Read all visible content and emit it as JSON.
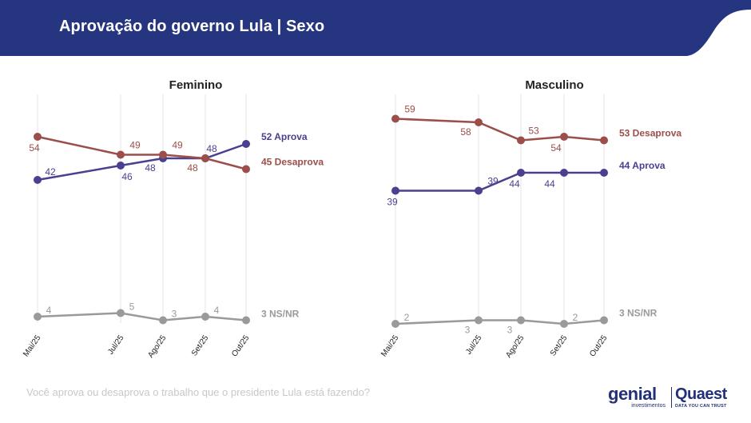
{
  "header": {
    "title": "Aprovação do governo Lula | Sexo"
  },
  "footer": {
    "question": "Você aprova ou desaprova o trabalho que o presidente Lula está fazendo?"
  },
  "logos": {
    "genial": {
      "word": "genial",
      "sub": "investimentos"
    },
    "quaest": {
      "word": "Quaest",
      "sub": "DATA YOU CAN TRUST"
    }
  },
  "colors": {
    "header_bg": "#26357f",
    "aprova": "#4b3f8f",
    "desaprova": "#9b4e4a",
    "nsnr": "#9a9a9a",
    "grid": "#e6e6e6"
  },
  "chart_data": [
    {
      "type": "line",
      "title": "Feminino",
      "x": [
        "Mai/25",
        "Jul/25",
        "Ago/25",
        "Set/25",
        "Out/25"
      ],
      "series": [
        {
          "name": "Aprova",
          "values": [
            42,
            46,
            48,
            48,
            52
          ],
          "end_label": "52 Aprova",
          "color": "#4b3f8f"
        },
        {
          "name": "Desaprova",
          "values": [
            54,
            49,
            49,
            48,
            45
          ],
          "end_label": "45 Desaprova",
          "color": "#9b4e4a"
        },
        {
          "name": "NS/NR",
          "values": [
            4,
            5,
            3,
            4,
            3
          ],
          "end_label": "3 NS/NR",
          "color": "#9a9a9a"
        }
      ],
      "grid": true
    },
    {
      "type": "line",
      "title": "Masculino",
      "x": [
        "Mai/25",
        "Jul/25",
        "Ago/25",
        "Set/25",
        "Out/25"
      ],
      "series": [
        {
          "name": "Desaprova",
          "values": [
            59,
            58,
            53,
            54,
            53
          ],
          "end_label": "53 Desaprova",
          "color": "#9b4e4a"
        },
        {
          "name": "Aprova",
          "values": [
            39,
            39,
            44,
            44,
            44
          ],
          "end_label": "44 Aprova",
          "color": "#4b3f8f"
        },
        {
          "name": "NS/NR",
          "values": [
            2,
            3,
            3,
            2,
            3
          ],
          "end_label": "3 NS/NR",
          "color": "#9a9a9a"
        }
      ],
      "grid": true
    }
  ]
}
